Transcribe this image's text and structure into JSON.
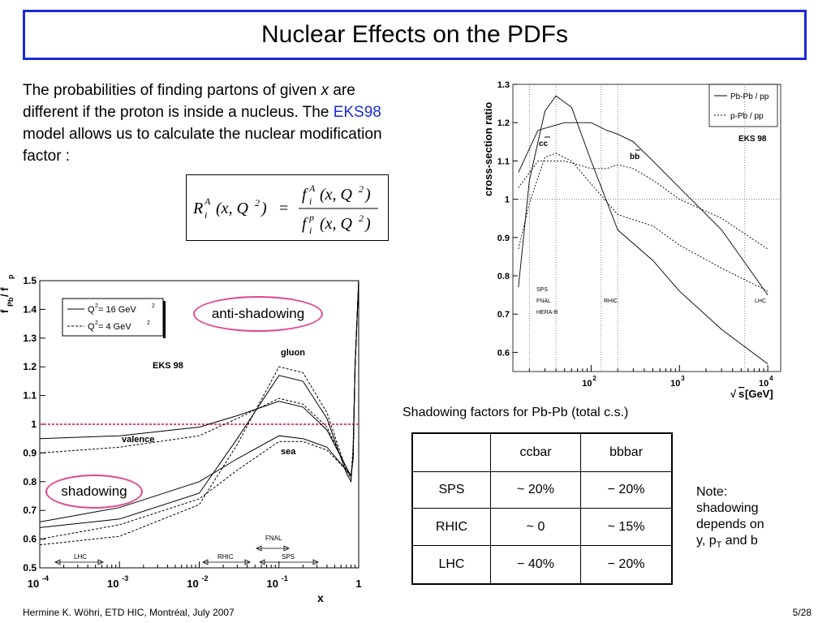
{
  "slide": {
    "title": "Nuclear Effects on the PDFs",
    "intro_part1": "The probabilities of finding partons of given ",
    "intro_x": "x",
    "intro_part2": " are different if the proton is inside a nucleus. The ",
    "intro_model": "EKS98",
    "intro_part3": " model allows us to calculate the nuclear modification factor :",
    "formula": {
      "lhs_R": "R",
      "lhs_sup": "A",
      "lhs_sub": "i",
      "lhs_args": "(x, Q",
      "lhs_close": ")",
      "num_f": "f",
      "num_sup": "A",
      "num_sub": "i",
      "num_args": "(x, Q",
      "num_close": ")",
      "den_f": "f",
      "den_sup": "p",
      "den_sub": "i",
      "den_args": "(x, Q",
      "den_close": ")",
      "equals": "=",
      "two": "2"
    },
    "footer_left": "Hermine K. Wöhri, ETD HIC, Montréal, July 2007",
    "footer_right": "5/28",
    "note_line1": "Note:",
    "note_line2": "shadowing",
    "note_line3": "depends on",
    "note_line4a": "y, p",
    "note_line4_sub": "T",
    "note_line4b": " and b",
    "table_caption": "Shadowing factors for Pb-Pb (total c.s.)",
    "table": {
      "headers": [
        "",
        "ccbar",
        "bbbar"
      ],
      "rows": [
        [
          "SPS",
          "~ 20%",
          "− 20%"
        ],
        [
          "RHIC",
          "~ 0",
          "~ 15%"
        ],
        [
          "LHC",
          "− 40%",
          "− 20%"
        ]
      ]
    },
    "bubbles": {
      "anti": "anti-shadowing",
      "shadow": "shadowing"
    },
    "highlight_color": "#e0478c",
    "accent_color": "#1a2ad6"
  },
  "chart_data": [
    {
      "type": "line",
      "ylabel_main": "f",
      "ylabel_sub1": "Pb",
      "ylabel_mid": "  /  f",
      "ylabel_sub2": "p",
      "xlabel": "x",
      "x_scale": "log",
      "xlim": [
        0.0001,
        1
      ],
      "ylim": [
        0.5,
        1.5
      ],
      "y_ticks": [
        "0.5",
        "0.6",
        "0.7",
        "0.8",
        "0.9",
        "1",
        "1.1",
        "1.2",
        "1.3",
        "1.4",
        "1.5"
      ],
      "x_tick_base": "10",
      "x_tick_exps": [
        "-4",
        "-3",
        "-2",
        "-1"
      ],
      "x_tick_one": "1",
      "legend": {
        "solid_pre": "Q",
        "solid_sup": "2",
        "solid_post": " = 16 GeV",
        "solid_sup2": "2",
        "dashed_pre": "Q",
        "dashed_sup": "2",
        "dashed_post": " = 4 GeV",
        "dashed_sup2": "2"
      },
      "annotations": {
        "model": "EKS  98",
        "gluon": "gluon",
        "valence": "valence",
        "sea": "sea"
      },
      "regions": {
        "lhc": "LHC",
        "rhic": "RHIC",
        "sps": "SPS",
        "fnal": "FNAL"
      },
      "reference_line": 1,
      "series": [
        {
          "name": "gluon",
          "style": "solid",
          "x": [
            0.0001,
            0.001,
            0.01,
            0.03,
            0.1,
            0.2,
            0.4,
            0.7,
            0.8,
            0.85,
            0.9,
            1
          ],
          "y": [
            0.64,
            0.67,
            0.76,
            0.95,
            1.17,
            1.15,
            1.02,
            0.83,
            0.8,
            0.9,
            1.2,
            1.5
          ]
        },
        {
          "name": "gluon",
          "style": "dashed",
          "x": [
            0.0001,
            0.001,
            0.01,
            0.03,
            0.1,
            0.2,
            0.4,
            0.7,
            0.8,
            0.85,
            0.9,
            1
          ],
          "y": [
            0.58,
            0.61,
            0.72,
            0.93,
            1.2,
            1.18,
            1.04,
            0.84,
            0.81,
            0.92,
            1.2,
            1.5
          ]
        },
        {
          "name": "valence",
          "style": "solid",
          "x": [
            0.0001,
            0.001,
            0.01,
            0.03,
            0.1,
            0.2,
            0.4,
            0.7,
            0.8,
            0.85,
            0.9,
            1
          ],
          "y": [
            0.95,
            0.96,
            0.99,
            1.03,
            1.08,
            1.06,
            0.98,
            0.85,
            0.82,
            0.88,
            1.2,
            1.5
          ]
        },
        {
          "name": "valence",
          "style": "dashed",
          "x": [
            0.0001,
            0.001,
            0.01,
            0.03,
            0.1,
            0.2,
            0.4,
            0.7,
            0.8,
            0.85,
            0.9,
            1
          ],
          "y": [
            0.9,
            0.92,
            0.96,
            1.02,
            1.09,
            1.07,
            0.99,
            0.85,
            0.82,
            0.88,
            1.2,
            1.5
          ]
        },
        {
          "name": "sea",
          "style": "solid",
          "x": [
            0.0001,
            0.001,
            0.01,
            0.03,
            0.1,
            0.2,
            0.4,
            0.7,
            0.8,
            0.85,
            0.9,
            1
          ],
          "y": [
            0.66,
            0.71,
            0.8,
            0.88,
            0.96,
            0.95,
            0.92,
            0.84,
            0.82,
            0.88,
            1.2,
            1.5
          ]
        },
        {
          "name": "sea",
          "style": "dashed",
          "x": [
            0.0001,
            0.001,
            0.01,
            0.03,
            0.1,
            0.2,
            0.4,
            0.7,
            0.8,
            0.85,
            0.9,
            1
          ],
          "y": [
            0.6,
            0.65,
            0.74,
            0.84,
            0.94,
            0.94,
            0.91,
            0.84,
            0.82,
            0.88,
            1.2,
            1.5
          ]
        }
      ]
    },
    {
      "type": "line",
      "ylabel": "cross-section ratio",
      "xlabel_sqrt": "√",
      "xlabel_s": "s",
      "xlabel_unit": " [GeV]",
      "x_scale": "log",
      "xlim": [
        13,
        14000
      ],
      "ylim": [
        0.55,
        1.3
      ],
      "y_ticks": [
        "0.6",
        "0.7",
        "0.8",
        "0.9",
        "1",
        "1.1",
        "1.2",
        "1.3"
      ],
      "x_tick_base": "10",
      "x_tick_exps": [
        "2",
        "3",
        "4"
      ],
      "legend": {
        "solid": "Pb-Pb / pp",
        "dashed": "p-Pb / pp"
      },
      "annotations": {
        "model": "EKS 98",
        "cc": "cc",
        "bb": "bb"
      },
      "energy_labels": {
        "sps": "SPS",
        "fnal": "FNAL",
        "herab": "HERA-B",
        "rhic": "RHIC",
        "lhc": "LHC"
      },
      "energy_lines": [
        20,
        40,
        130,
        200,
        5500
      ],
      "reference_line": 1,
      "series": [
        {
          "name": "cc",
          "style": "solid",
          "x": [
            15,
            20,
            30,
            40,
            60,
            100,
            200,
            500,
            1000,
            3000,
            10000
          ],
          "y": [
            0.77,
            1.05,
            1.23,
            1.27,
            1.24,
            1.1,
            0.92,
            0.84,
            0.76,
            0.66,
            0.57
          ]
        },
        {
          "name": "cc",
          "style": "dashed",
          "x": [
            15,
            20,
            30,
            40,
            60,
            100,
            200,
            500,
            1000,
            3000,
            10000
          ],
          "y": [
            0.87,
            0.99,
            1.11,
            1.12,
            1.1,
            1.04,
            0.96,
            0.93,
            0.88,
            0.82,
            0.76
          ]
        },
        {
          "name": "bb",
          "style": "solid",
          "x": [
            15,
            25,
            50,
            100,
            150,
            200,
            300,
            500,
            1000,
            3000,
            10000
          ],
          "y": [
            1.07,
            1.18,
            1.2,
            1.2,
            1.18,
            1.17,
            1.15,
            1.1,
            1.03,
            0.92,
            0.75
          ]
        },
        {
          "name": "bb",
          "style": "dashed",
          "x": [
            15,
            25,
            50,
            100,
            150,
            200,
            300,
            500,
            1000,
            3000,
            10000
          ],
          "y": [
            1.03,
            1.1,
            1.1,
            1.08,
            1.08,
            1.09,
            1.08,
            1.05,
            1.0,
            0.95,
            0.87
          ]
        }
      ]
    }
  ]
}
